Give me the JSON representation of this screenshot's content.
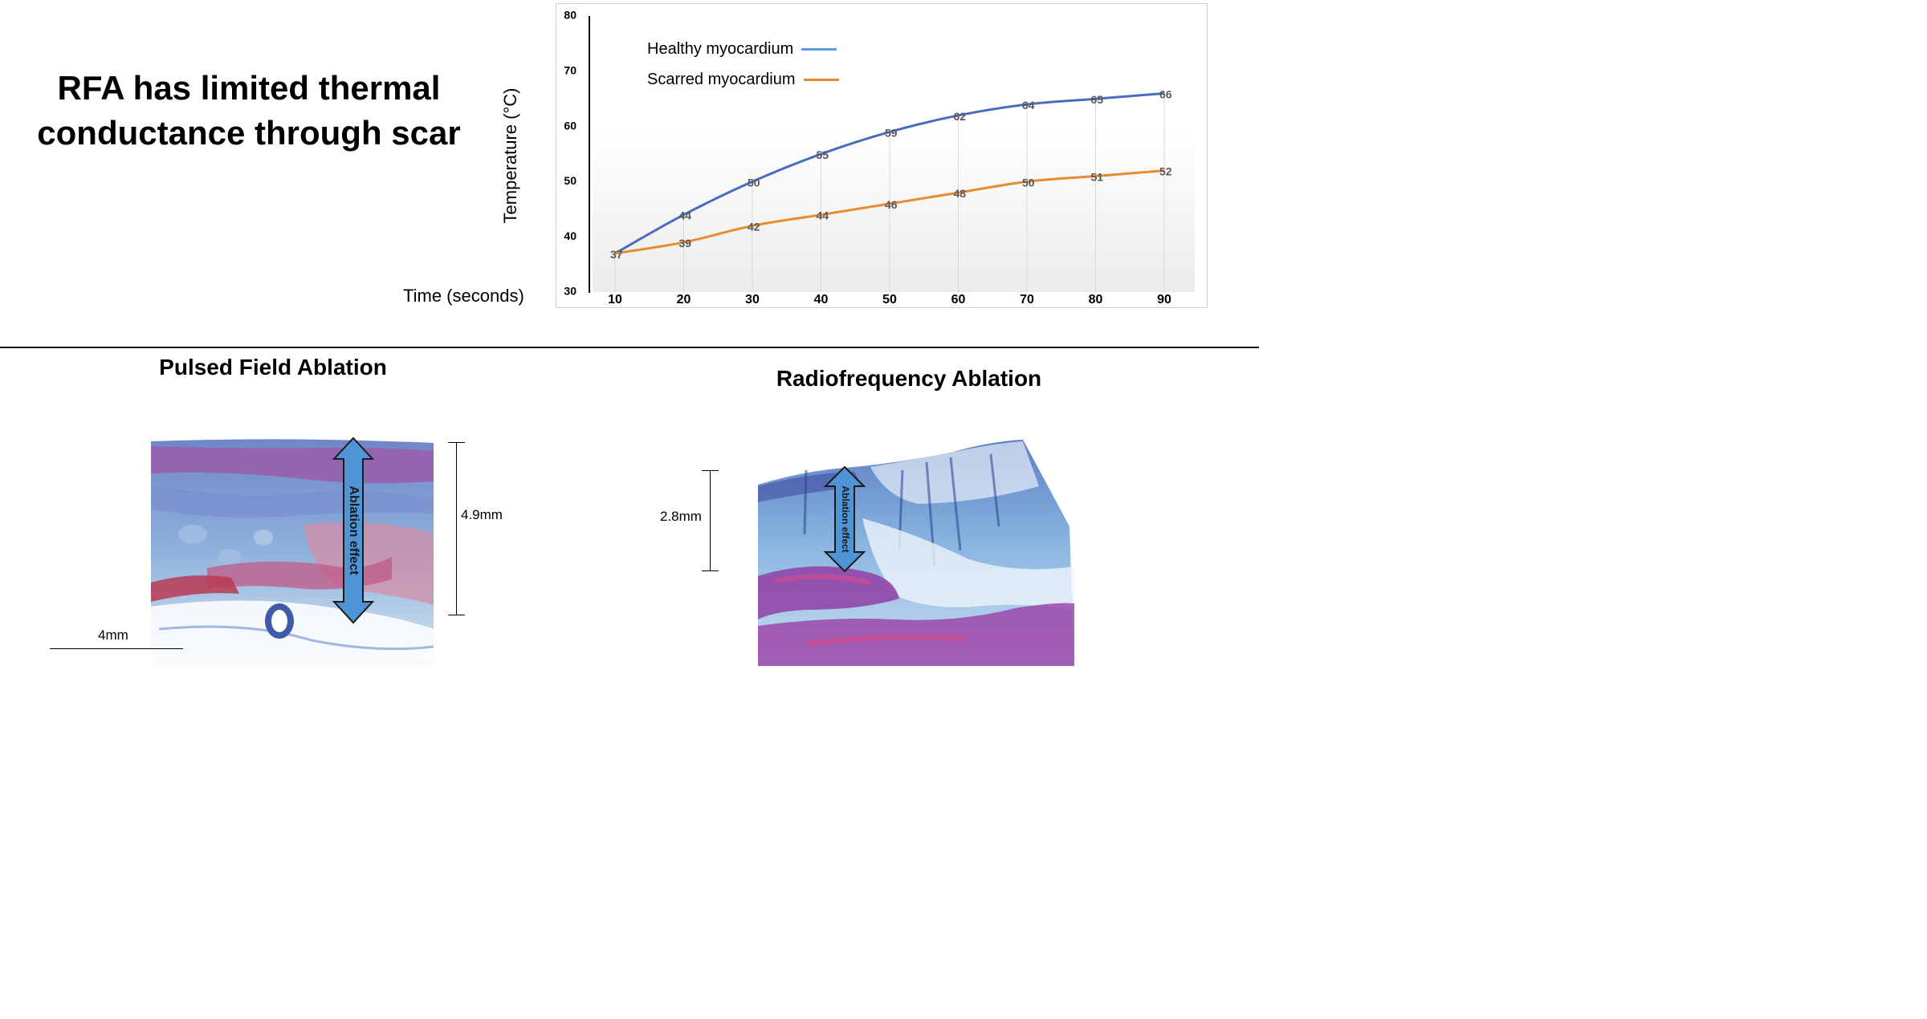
{
  "headline": {
    "line1": "RFA has limited thermal",
    "line2": "conductance through scar"
  },
  "chart_data": {
    "type": "line",
    "x": [
      10,
      20,
      30,
      40,
      50,
      60,
      70,
      80,
      90
    ],
    "series": [
      {
        "name": "Healthy myocardium",
        "values": [
          37,
          44,
          50,
          55,
          59,
          62,
          64,
          65,
          66
        ]
      },
      {
        "name": "Scarred myocardium",
        "values": [
          37,
          39,
          42,
          44,
          46,
          48,
          50,
          51,
          52
        ]
      }
    ],
    "title": "",
    "xlabel": "Time (seconds)",
    "ylabel": "Temperature (°C)",
    "xticks": [
      "10",
      "20",
      "30",
      "40",
      "50",
      "60",
      "70",
      "80",
      "90"
    ],
    "yticks": [
      "30",
      "40",
      "50",
      "60",
      "70",
      "80"
    ],
    "ylim": [
      30,
      80
    ],
    "grid": "vertical",
    "legend": "top-left",
    "colors": {
      "healthy_line": "#4a6cc0",
      "healthy_legend": "#5a9ad8",
      "scarred_line": "#e88a2e",
      "data_labels": "#595959"
    }
  },
  "panels": {
    "pfa": {
      "title": "Pulsed Field Ablation",
      "arrow_label": "Ablation effect",
      "depth_label": "4.9mm",
      "scale_label": "4mm"
    },
    "rfa": {
      "title": "Radiofrequency Ablation",
      "arrow_label": "Ablation effect",
      "depth_label": "2.8mm"
    }
  }
}
